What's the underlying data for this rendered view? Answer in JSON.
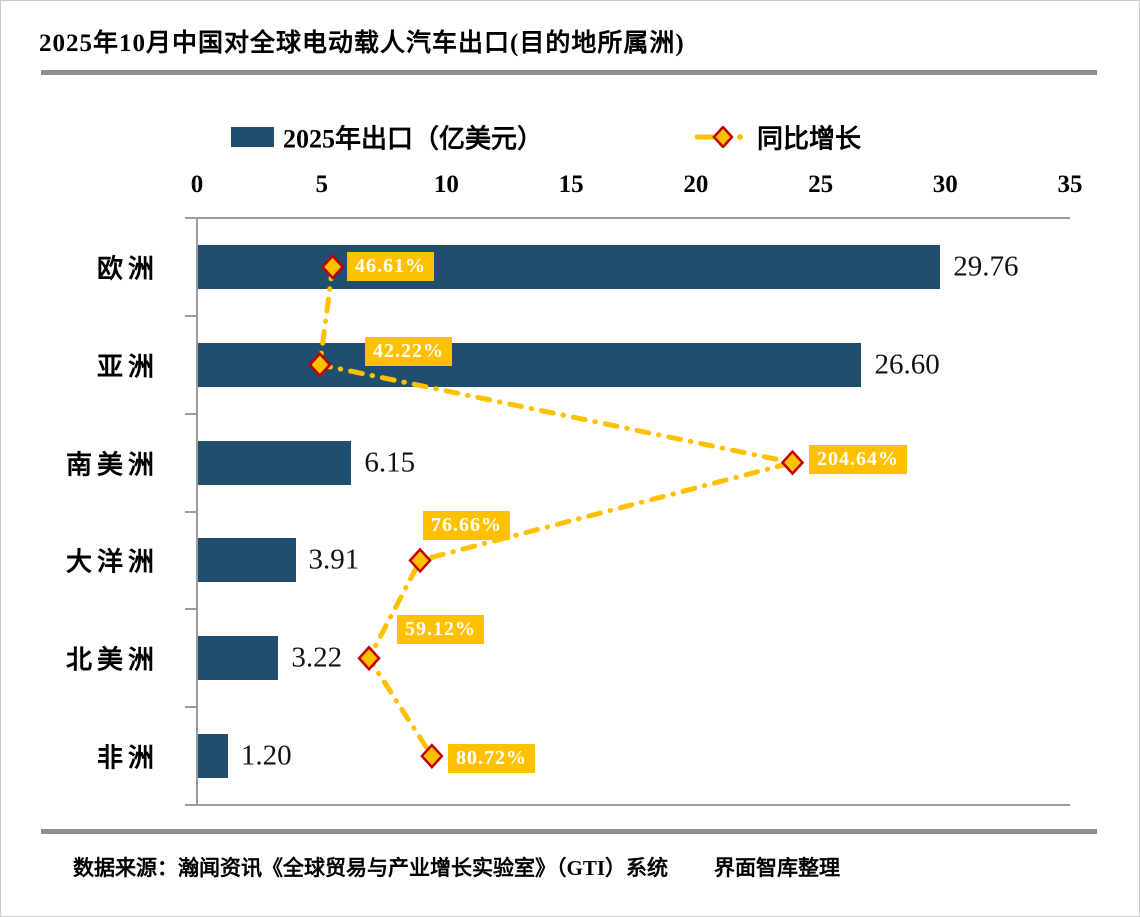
{
  "title": "2025年10月中国对全球电动载人汽车出口(目的地所属洲)",
  "legend": {
    "bar_label": "2025年出口（亿美元）",
    "line_label": "同比增长"
  },
  "axis_ticks": [
    "0",
    "5",
    "10",
    "15",
    "20",
    "25",
    "30",
    "35"
  ],
  "rows": [
    {
      "category": "欧洲",
      "value_label": "29.76",
      "growth_label": "46.61%"
    },
    {
      "category": "亚洲",
      "value_label": "26.60",
      "growth_label": "42.22%"
    },
    {
      "category": "南美洲",
      "value_label": "6.15",
      "growth_label": "204.64%"
    },
    {
      "category": "大洋洲",
      "value_label": "3.91",
      "growth_label": "76.66%"
    },
    {
      "category": "北美洲",
      "value_label": "3.22",
      "growth_label": "59.12%"
    },
    {
      "category": "非洲",
      "value_label": "1.20",
      "growth_label": "80.72%"
    }
  ],
  "footer": {
    "source": "数据来源：瀚闻资讯《全球贸易与产业增长实验室》（GTI）系统",
    "credit": "界面智库整理"
  },
  "colors": {
    "bar": "#1F4E6E",
    "line": "#FFC000",
    "marker_fill": "#FFC000",
    "marker_stroke": "#C00000",
    "growth_box_bg": "#FFC000",
    "growth_box_text": "#FFFFFF",
    "axis": "#9C9C9C",
    "rule": "#8F8F8F"
  },
  "chart_data": {
    "type": "bar",
    "orientation": "horizontal",
    "title": "2025年10月中国对全球电动载人汽车出口(目的地所属洲)",
    "categories": [
      "欧洲",
      "亚洲",
      "南美洲",
      "大洋洲",
      "北美洲",
      "非洲"
    ],
    "series": [
      {
        "name": "2025年出口（亿美元）",
        "type": "bar",
        "unit": "亿美元",
        "values": [
          29.76,
          26.6,
          6.15,
          3.91,
          3.22,
          1.2
        ]
      },
      {
        "name": "同比增长",
        "type": "line",
        "style": "dash-dot",
        "marker": "diamond",
        "unit": "%",
        "values": [
          46.61,
          42.22,
          204.64,
          76.66,
          59.12,
          80.72
        ]
      }
    ],
    "value_axis": {
      "position": "top",
      "min": 0,
      "max": 35,
      "tick_step": 5,
      "grid": false
    },
    "secondary_axis": {
      "visible": false,
      "min": 0,
      "max": 300,
      "unit": "%"
    },
    "legend_position": "top",
    "data_labels": true
  }
}
